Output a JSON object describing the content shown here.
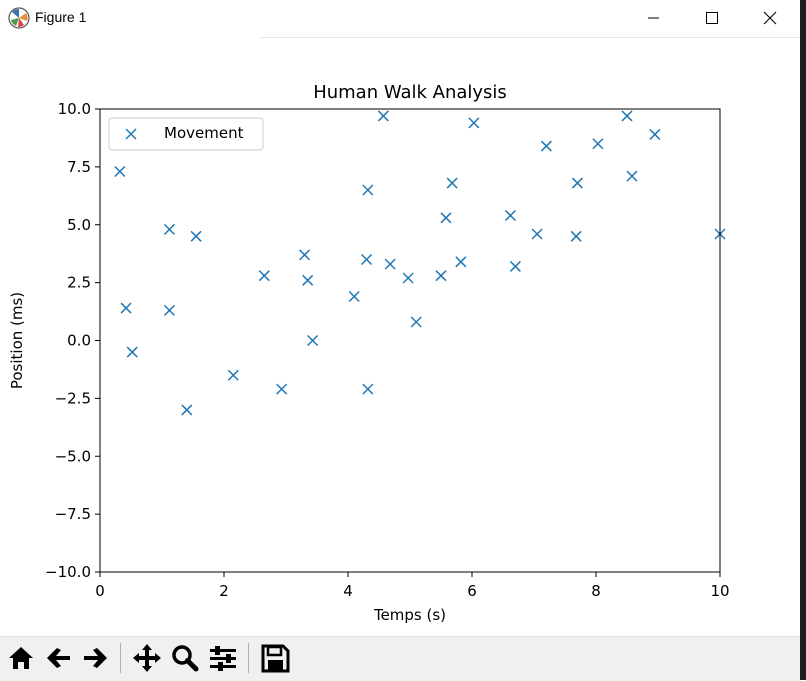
{
  "window": {
    "title": "Figure 1",
    "icons": [
      "figure-app-icon",
      "minimize-icon",
      "maximize-icon",
      "close-icon"
    ]
  },
  "toolbar": {
    "buttons": [
      {
        "name": "home-button",
        "icon": "home-icon"
      },
      {
        "name": "back-button",
        "icon": "arrow-left-icon"
      },
      {
        "name": "forward-button",
        "icon": "arrow-right-icon"
      },
      {
        "name": "pan-button",
        "icon": "move-icon"
      },
      {
        "name": "zoom-button",
        "icon": "magnifier-icon"
      },
      {
        "name": "configure-subplots-button",
        "icon": "sliders-icon"
      },
      {
        "name": "save-button",
        "icon": "floppy-disk-icon"
      }
    ]
  },
  "chart_data": {
    "type": "scatter",
    "title": "Human Walk Analysis",
    "xlabel": "Temps (s)",
    "ylabel": "Position (ms)",
    "xlim": [
      0,
      10
    ],
    "ylim": [
      -10,
      10
    ],
    "xticks": [
      "0",
      "2",
      "4",
      "6",
      "8",
      "10"
    ],
    "yticks": [
      "10.0",
      "7.5",
      "5.0",
      "2.5",
      "0.0",
      "−2.5",
      "−5.0",
      "−7.5",
      "−10.0"
    ],
    "xtick_values": [
      0,
      2,
      4,
      6,
      8,
      10
    ],
    "ytick_values": [
      10,
      7.5,
      5,
      2.5,
      0,
      -2.5,
      -5,
      -7.5,
      -10
    ],
    "grid": false,
    "legend_position": "upper-left",
    "marker": "x",
    "series_color": "#1f77b4",
    "series": [
      {
        "name": "Movement",
        "x": [
          0.32,
          0.42,
          0.52,
          1.12,
          1.12,
          1.4,
          1.55,
          2.15,
          2.65,
          2.93,
          3.3,
          3.35,
          3.43,
          4.1,
          4.3,
          4.32,
          4.32,
          4.57,
          4.68,
          4.97,
          5.1,
          5.5,
          5.58,
          5.68,
          5.82,
          6.03,
          6.62,
          6.7,
          7.05,
          7.2,
          7.68,
          7.7,
          8.03,
          8.5,
          8.58,
          8.95,
          10.0
        ],
        "y": [
          7.3,
          1.4,
          -0.5,
          4.8,
          1.3,
          -3.0,
          4.5,
          -1.5,
          2.8,
          -2.1,
          3.7,
          2.6,
          0.0,
          1.9,
          3.5,
          6.5,
          -2.1,
          9.7,
          3.3,
          2.7,
          0.8,
          2.8,
          5.3,
          6.8,
          3.4,
          9.4,
          5.4,
          3.2,
          4.6,
          8.4,
          4.5,
          6.8,
          8.5,
          9.7,
          7.1,
          8.9,
          4.6
        ]
      }
    ]
  }
}
